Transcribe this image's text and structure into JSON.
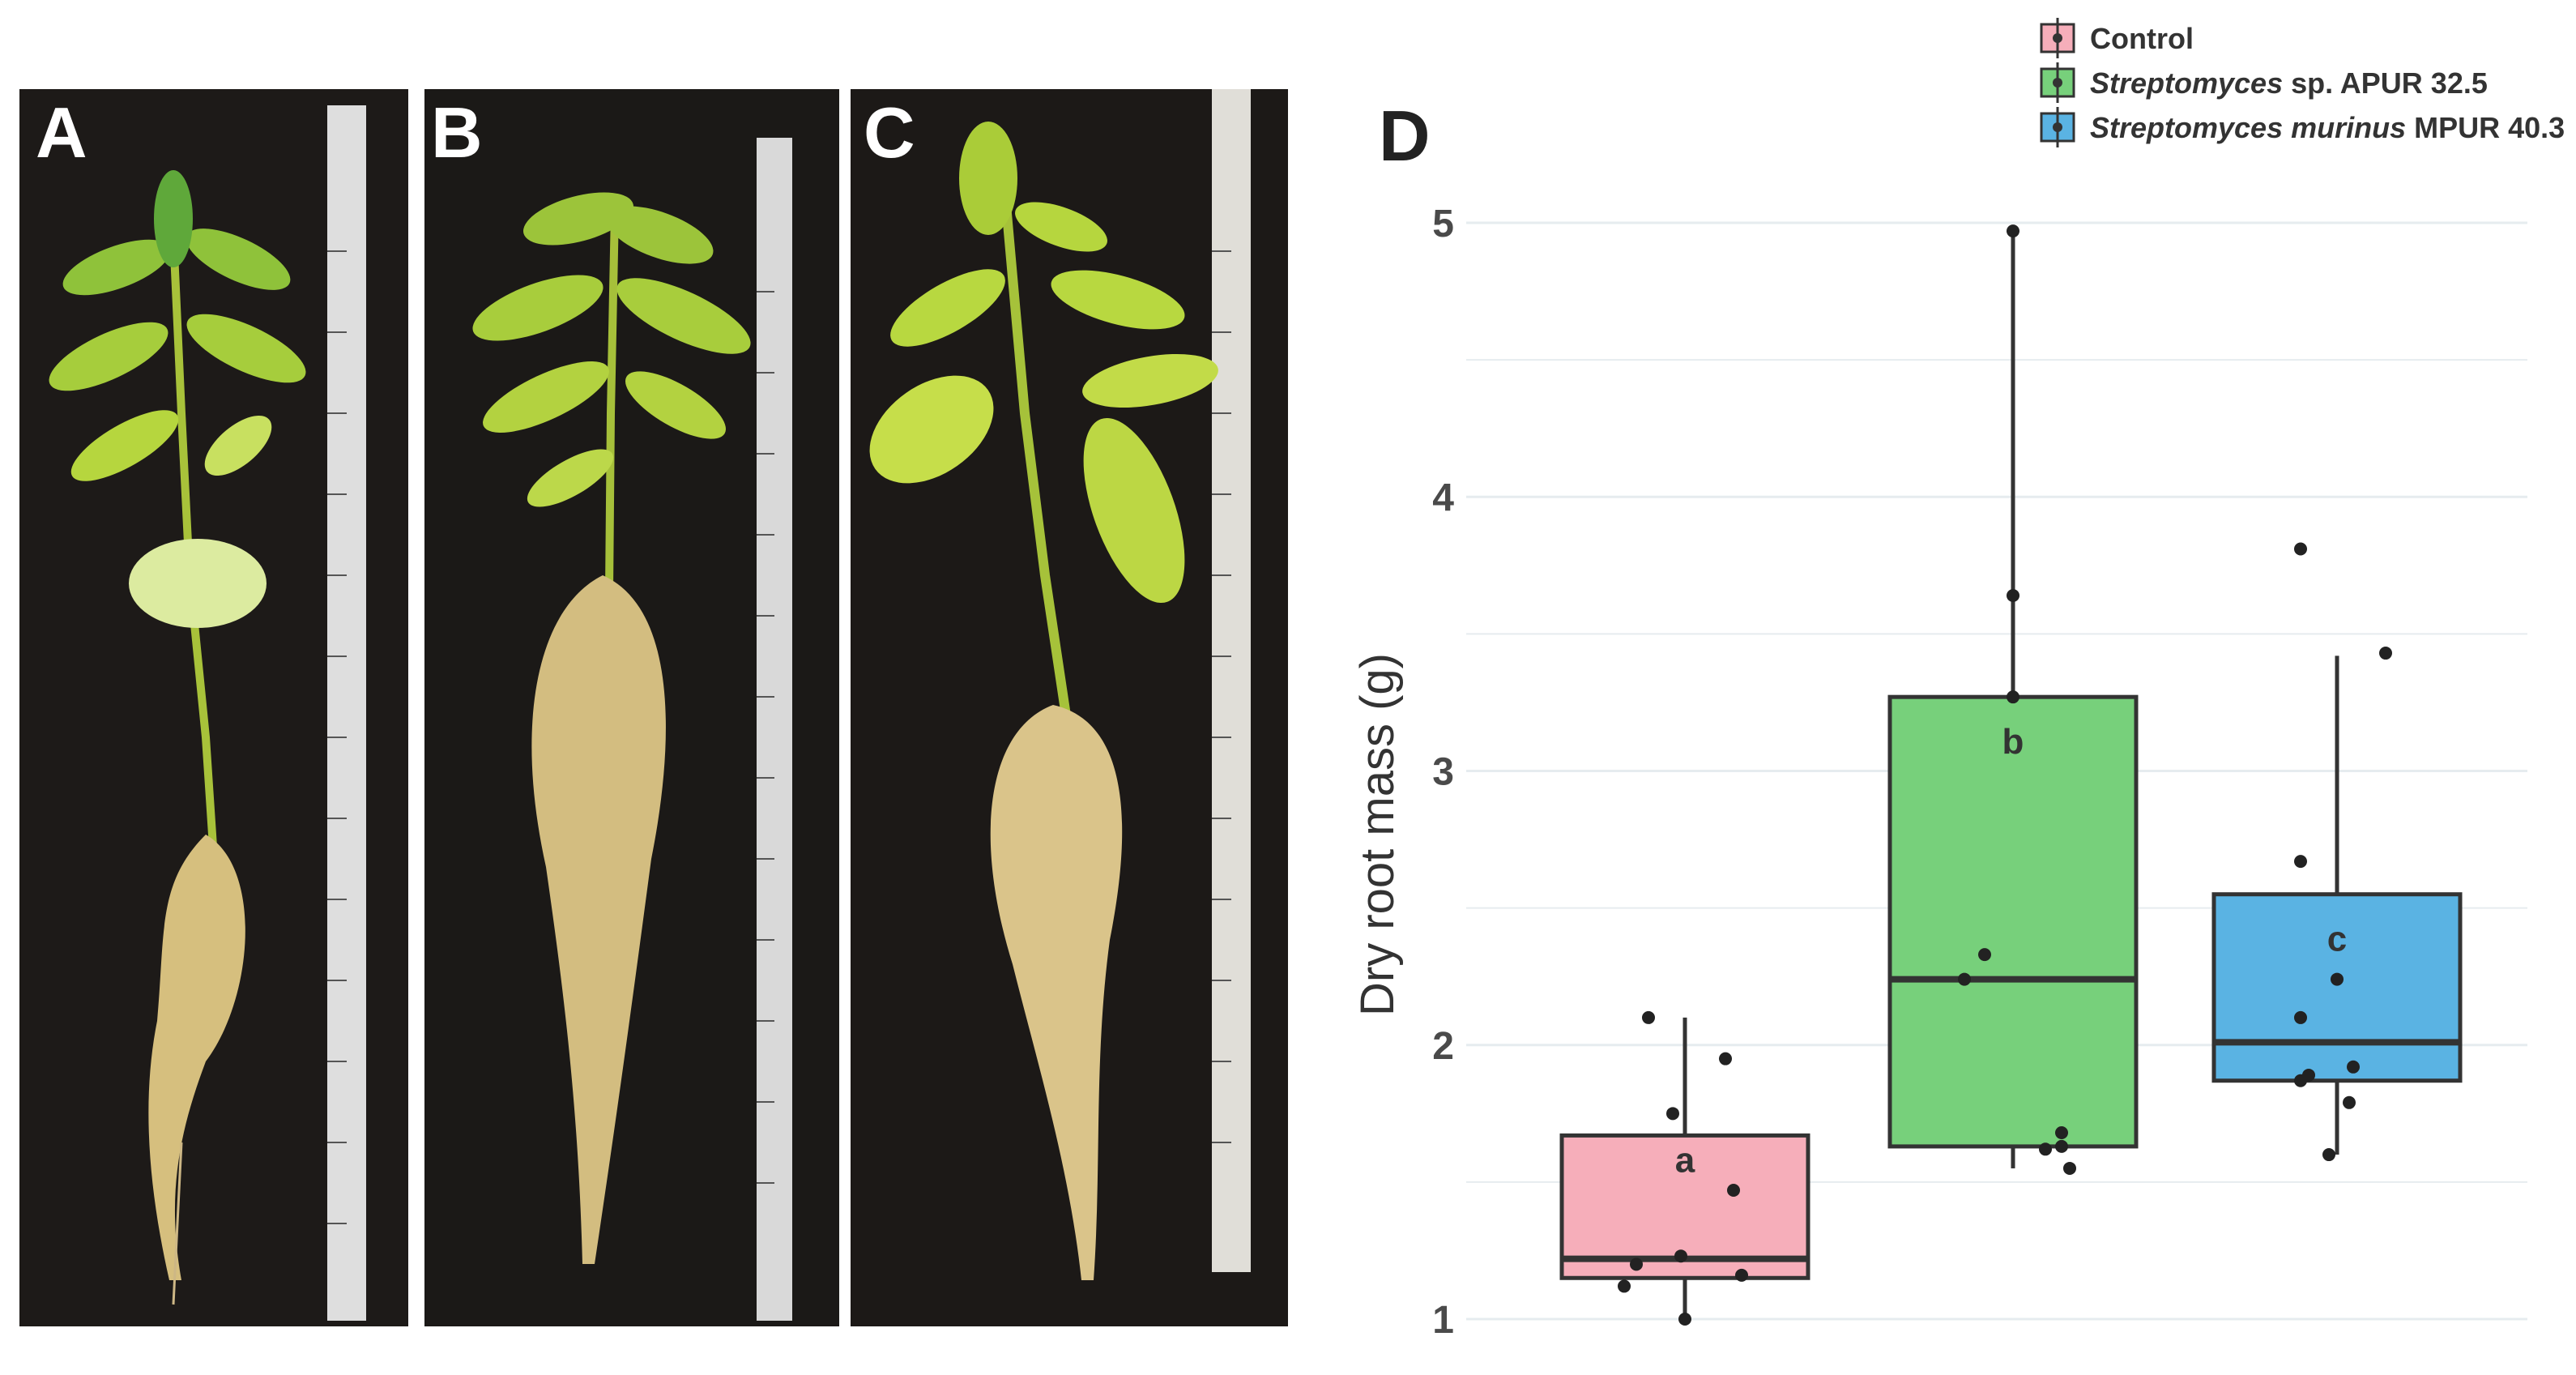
{
  "panels": {
    "a": {
      "letter": "A"
    },
    "b": {
      "letter": "B"
    },
    "c": {
      "letter": "C"
    },
    "d": {
      "letter": "D"
    }
  },
  "colors": {
    "photo_background": "#1a1816",
    "leaf": "#b7d43a",
    "stem": "#a9c23a",
    "root": "#d8c48a",
    "ruler": "#e8e8e8"
  },
  "chart_data": {
    "type": "box",
    "ylabel": "Dry root mass (g)",
    "xlabel": "",
    "ylim": [
      1,
      5
    ],
    "yticks": [
      1,
      2,
      3,
      4,
      5
    ],
    "grid": true,
    "legend_position": "top-right",
    "legend": [
      {
        "name": "Control",
        "color": "#f6aeba"
      },
      {
        "name": "Streptomyces sp. APUR 32.5",
        "italic_part": "Streptomyces",
        "plain_part": " sp. APUR 32.5",
        "color": "#77d07b"
      },
      {
        "name": "Streptomyces murinus MPUR 40.3",
        "italic_part": "Streptomyces murinus",
        "plain_part": " MPUR 40.3",
        "color": "#5ab3e3"
      }
    ],
    "series": [
      {
        "name": "Control",
        "color": "#f6aeba",
        "letter": "a",
        "whisker_low": 1.0,
        "q1": 1.15,
        "median": 1.22,
        "q3": 1.67,
        "whisker_high": 2.1,
        "points": [
          2.1,
          1.95,
          1.75,
          1.47,
          1.23,
          1.2,
          1.16,
          1.12,
          1.0
        ]
      },
      {
        "name": "Streptomyces sp. APUR 32.5",
        "color": "#77d07b",
        "letter": "b",
        "whisker_low": 1.55,
        "q1": 1.63,
        "median": 2.24,
        "q3": 3.27,
        "whisker_high": 4.97,
        "points": [
          4.97,
          3.64,
          3.27,
          2.33,
          2.24,
          1.68,
          1.63,
          1.62,
          1.55
        ]
      },
      {
        "name": "Streptomyces murinus MPUR 40.3",
        "color": "#5ab3e3",
        "letter": "c",
        "whisker_low": 1.6,
        "q1": 1.87,
        "median": 2.01,
        "q3": 2.55,
        "whisker_high": 3.42,
        "points": [
          3.81,
          3.43,
          2.67,
          2.24,
          2.1,
          1.92,
          1.89,
          1.87,
          1.79,
          1.6
        ]
      }
    ]
  }
}
